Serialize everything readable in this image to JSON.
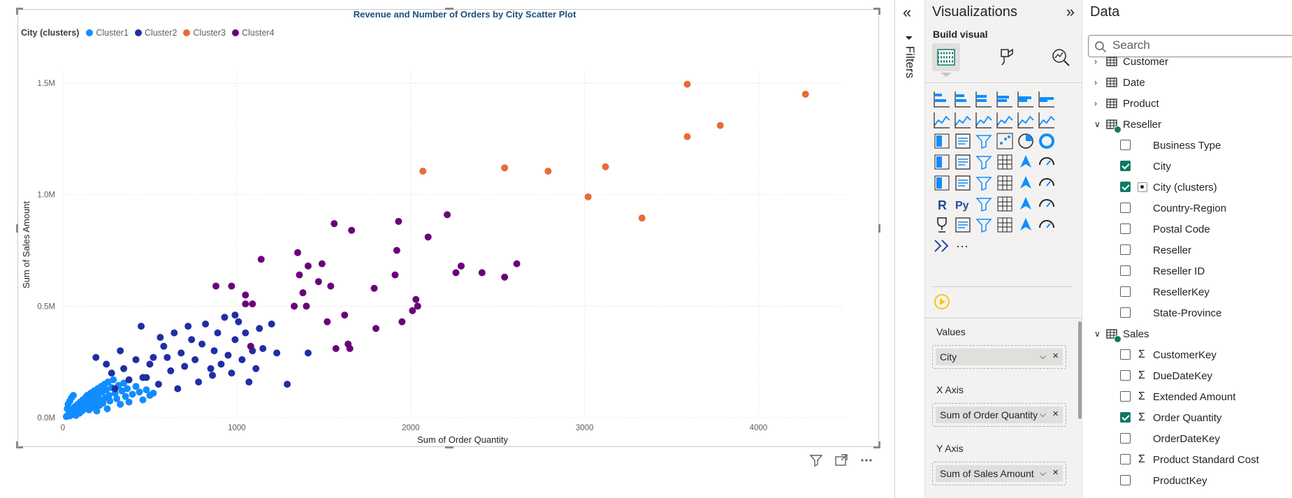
{
  "visual": {
    "title": "Revenue and Number of Orders by City Scatter Plot",
    "footer_icons": [
      "filter-icon",
      "focus-mode-icon",
      "more-options-icon"
    ]
  },
  "chart_data": {
    "type": "scatter",
    "title": "Revenue and Number of Orders by City Scatter Plot",
    "xlabel": "Sum of Order Quantity",
    "ylabel": "Sum of Sales Amount",
    "xlim": [
      0,
      4500
    ],
    "ylim": [
      0,
      1550000
    ],
    "x_ticks": [
      0,
      1000,
      2000,
      3000,
      4000
    ],
    "x_tick_labels": [
      "0",
      "1000",
      "2000",
      "3000",
      "4000"
    ],
    "y_ticks": [
      0,
      500000,
      1000000,
      1500000
    ],
    "y_tick_labels": [
      "0.0M",
      "0.5M",
      "1.0M",
      "1.5M"
    ],
    "grid": true,
    "legend_title": "City (clusters)",
    "legend_position": "top-left",
    "series": [
      {
        "name": "Cluster1",
        "color": "#118dff",
        "points": [
          [
            20,
            5000
          ],
          [
            30,
            12000
          ],
          [
            40,
            8000
          ],
          [
            45,
            20000
          ],
          [
            50,
            30000
          ],
          [
            55,
            15000
          ],
          [
            60,
            40000
          ],
          [
            65,
            25000
          ],
          [
            70,
            50000
          ],
          [
            75,
            10000
          ],
          [
            80,
            35000
          ],
          [
            85,
            60000
          ],
          [
            90,
            45000
          ],
          [
            95,
            20000
          ],
          [
            100,
            70000
          ],
          [
            105,
            55000
          ],
          [
            110,
            30000
          ],
          [
            115,
            80000
          ],
          [
            120,
            65000
          ],
          [
            125,
            40000
          ],
          [
            130,
            90000
          ],
          [
            135,
            50000
          ],
          [
            140,
            100000
          ],
          [
            145,
            75000
          ],
          [
            150,
            35000
          ],
          [
            160,
            110000
          ],
          [
            165,
            60000
          ],
          [
            170,
            85000
          ],
          [
            175,
            45000
          ],
          [
            180,
            120000
          ],
          [
            185,
            95000
          ],
          [
            190,
            70000
          ],
          [
            195,
            30000
          ],
          [
            200,
            130000
          ],
          [
            205,
            105000
          ],
          [
            210,
            55000
          ],
          [
            215,
            80000
          ],
          [
            220,
            140000
          ],
          [
            225,
            115000
          ],
          [
            230,
            65000
          ],
          [
            240,
            150000
          ],
          [
            245,
            90000
          ],
          [
            250,
            125000
          ],
          [
            255,
            40000
          ],
          [
            260,
            160000
          ],
          [
            265,
            100000
          ],
          [
            270,
            75000
          ],
          [
            280,
            135000
          ],
          [
            290,
            170000
          ],
          [
            300,
            110000
          ],
          [
            310,
            85000
          ],
          [
            320,
            145000
          ],
          [
            330,
            60000
          ],
          [
            340,
            120000
          ],
          [
            350,
            155000
          ],
          [
            360,
            95000
          ],
          [
            370,
            130000
          ],
          [
            380,
            70000
          ],
          [
            400,
            105000
          ],
          [
            420,
            140000
          ],
          [
            440,
            115000
          ],
          [
            460,
            80000
          ],
          [
            480,
            125000
          ],
          [
            500,
            100000
          ],
          [
            520,
            110000
          ],
          [
            30,
            60000
          ],
          [
            40,
            75000
          ],
          [
            50,
            90000
          ],
          [
            60,
            100000
          ],
          [
            25,
            40000
          ]
        ]
      },
      {
        "name": "Cluster2",
        "color": "#1f2fa4",
        "points": [
          [
            190,
            270000
          ],
          [
            250,
            240000
          ],
          [
            280,
            200000
          ],
          [
            350,
            220000
          ],
          [
            380,
            170000
          ],
          [
            420,
            260000
          ],
          [
            450,
            410000
          ],
          [
            460,
            180000
          ],
          [
            500,
            240000
          ],
          [
            520,
            270000
          ],
          [
            550,
            150000
          ],
          [
            580,
            320000
          ],
          [
            600,
            270000
          ],
          [
            620,
            210000
          ],
          [
            640,
            380000
          ],
          [
            660,
            130000
          ],
          [
            680,
            290000
          ],
          [
            700,
            230000
          ],
          [
            720,
            410000
          ],
          [
            740,
            350000
          ],
          [
            760,
            260000
          ],
          [
            780,
            160000
          ],
          [
            800,
            330000
          ],
          [
            820,
            420000
          ],
          [
            850,
            220000
          ],
          [
            870,
            300000
          ],
          [
            890,
            380000
          ],
          [
            910,
            240000
          ],
          [
            930,
            450000
          ],
          [
            950,
            280000
          ],
          [
            970,
            200000
          ],
          [
            990,
            350000
          ],
          [
            1010,
            430000
          ],
          [
            1030,
            260000
          ],
          [
            1050,
            380000
          ],
          [
            1070,
            160000
          ],
          [
            1090,
            300000
          ],
          [
            1110,
            220000
          ],
          [
            1130,
            400000
          ],
          [
            1150,
            310000
          ],
          [
            1200,
            420000
          ],
          [
            1230,
            290000
          ],
          [
            1290,
            150000
          ],
          [
            1410,
            290000
          ],
          [
            300,
            130000
          ],
          [
            330,
            300000
          ],
          [
            480,
            180000
          ],
          [
            560,
            360000
          ],
          [
            860,
            190000
          ],
          [
            990,
            460000
          ]
        ]
      },
      {
        "name": "Cluster3",
        "color": "#e66c37",
        "points": [
          [
            2070,
            1105000
          ],
          [
            2540,
            1120000
          ],
          [
            2790,
            1105000
          ],
          [
            3020,
            990000
          ],
          [
            3120,
            1125000
          ],
          [
            3330,
            895000
          ],
          [
            3590,
            1495000
          ],
          [
            3590,
            1260000
          ],
          [
            3780,
            1310000
          ],
          [
            4270,
            1450000
          ]
        ]
      },
      {
        "name": "Cluster4",
        "color": "#6b007b",
        "points": [
          [
            880,
            590000
          ],
          [
            970,
            590000
          ],
          [
            1050,
            550000
          ],
          [
            1090,
            510000
          ],
          [
            1140,
            710000
          ],
          [
            1350,
            740000
          ],
          [
            1380,
            560000
          ],
          [
            1400,
            500000
          ],
          [
            1410,
            680000
          ],
          [
            1470,
            610000
          ],
          [
            1490,
            690000
          ],
          [
            1520,
            430000
          ],
          [
            1540,
            590000
          ],
          [
            1560,
            870000
          ],
          [
            1570,
            310000
          ],
          [
            1620,
            460000
          ],
          [
            1640,
            330000
          ],
          [
            1650,
            310000
          ],
          [
            1660,
            840000
          ],
          [
            1790,
            580000
          ],
          [
            1800,
            400000
          ],
          [
            1910,
            640000
          ],
          [
            1920,
            750000
          ],
          [
            1930,
            880000
          ],
          [
            1950,
            430000
          ],
          [
            2010,
            480000
          ],
          [
            2030,
            530000
          ],
          [
            2040,
            500000
          ],
          [
            2100,
            810000
          ],
          [
            2210,
            910000
          ],
          [
            2260,
            650000
          ],
          [
            2290,
            680000
          ],
          [
            2410,
            650000
          ],
          [
            2540,
            630000
          ],
          [
            2610,
            690000
          ],
          [
            1330,
            500000
          ],
          [
            1360,
            640000
          ],
          [
            1080,
            320000
          ],
          [
            1050,
            510000
          ]
        ]
      }
    ]
  },
  "filters": {
    "label": "Filters"
  },
  "visualizations": {
    "title": "Visualizations",
    "build_visual_label": "Build visual",
    "wells": [
      {
        "label": "Values",
        "field": "City"
      },
      {
        "label": "X Axis",
        "field": "Sum of Order Quantity"
      },
      {
        "label": "Y Axis",
        "field": "Sum of Sales Amount"
      }
    ],
    "more_visuals": "···"
  },
  "data_pane": {
    "title": "Data",
    "search_placeholder": "Search",
    "rows": [
      {
        "kind": "table",
        "label": "Customer",
        "expanded": false,
        "checked_badge": false
      },
      {
        "kind": "table",
        "label": "Date",
        "expanded": false,
        "checked_badge": false
      },
      {
        "kind": "table",
        "label": "Product",
        "expanded": false,
        "checked_badge": false
      },
      {
        "kind": "table",
        "label": "Reseller",
        "expanded": true,
        "checked_badge": true
      },
      {
        "kind": "field",
        "label": "Business Type",
        "checked": false,
        "icon": ""
      },
      {
        "kind": "field",
        "label": "City",
        "checked": true,
        "icon": ""
      },
      {
        "kind": "field",
        "label": "City (clusters)",
        "checked": true,
        "icon": "cluster"
      },
      {
        "kind": "field",
        "label": "Country-Region",
        "checked": false,
        "icon": ""
      },
      {
        "kind": "field",
        "label": "Postal Code",
        "checked": false,
        "icon": ""
      },
      {
        "kind": "field",
        "label": "Reseller",
        "checked": false,
        "icon": ""
      },
      {
        "kind": "field",
        "label": "Reseller ID",
        "checked": false,
        "icon": ""
      },
      {
        "kind": "field",
        "label": "ResellerKey",
        "checked": false,
        "icon": ""
      },
      {
        "kind": "field",
        "label": "State-Province",
        "checked": false,
        "icon": ""
      },
      {
        "kind": "table",
        "label": "Sales",
        "expanded": true,
        "checked_badge": true
      },
      {
        "kind": "field",
        "label": "CustomerKey",
        "checked": false,
        "icon": "sigma"
      },
      {
        "kind": "field",
        "label": "DueDateKey",
        "checked": false,
        "icon": "sigma"
      },
      {
        "kind": "field",
        "label": "Extended Amount",
        "checked": false,
        "icon": "sigma"
      },
      {
        "kind": "field",
        "label": "Order Quantity",
        "checked": true,
        "icon": "sigma"
      },
      {
        "kind": "field",
        "label": "OrderDateKey",
        "checked": false,
        "icon": ""
      },
      {
        "kind": "field",
        "label": "Product Standard Cost",
        "checked": false,
        "icon": "sigma"
      },
      {
        "kind": "field",
        "label": "ProductKey",
        "checked": false,
        "icon": ""
      }
    ]
  }
}
